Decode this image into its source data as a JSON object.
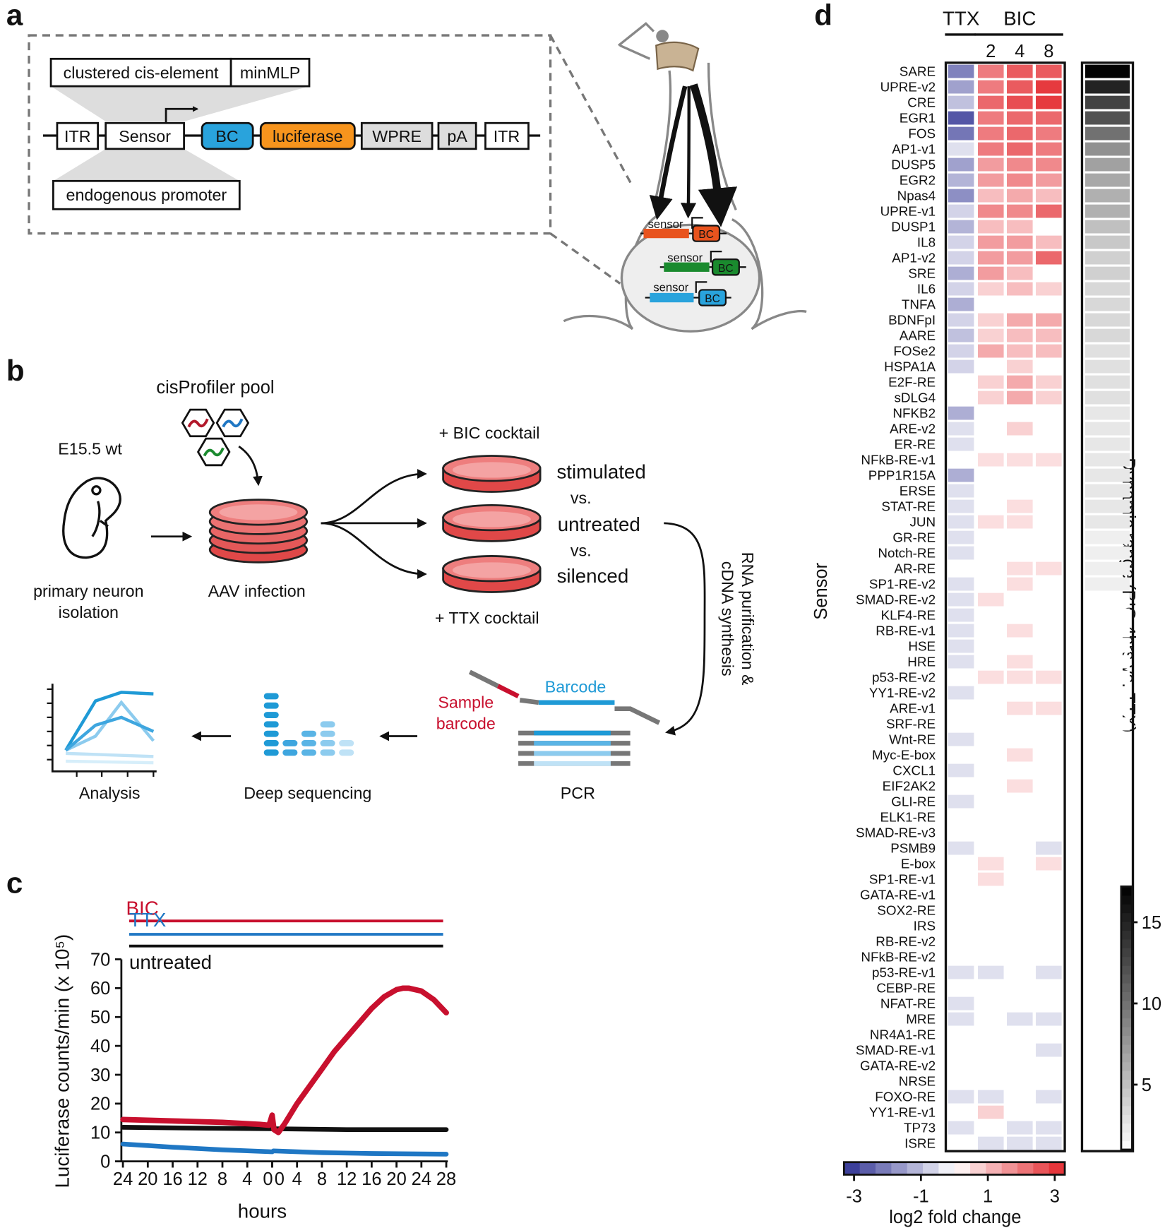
{
  "panel_labels": {
    "a": "a",
    "b": "b",
    "c": "c",
    "d": "d"
  },
  "panel_a": {
    "cis_element": "clustered cis-element",
    "min_promoter": "minMLP",
    "itr_left": "ITR",
    "sensor": "Sensor",
    "barcode": "BC",
    "reporter": "luciferase",
    "wpre": "WPRE",
    "polya": "pA",
    "itr_right": "ITR",
    "endogenous": "endogenous promoter",
    "cell_constructs": [
      {
        "sensor": "sensor",
        "barcode": "BC"
      },
      {
        "sensor": "sensor",
        "barcode": "BC"
      },
      {
        "sensor": "sensor",
        "barcode": "BC"
      }
    ]
  },
  "panel_b": {
    "pool": "cisProfiler pool",
    "mouse": "E15.5 wt",
    "isolation": [
      "primary neuron",
      "isolation"
    ],
    "infection": "AAV infection",
    "bic": "+ BIC cocktail",
    "stimulated": "stimulated",
    "vs_1": "vs.",
    "untreated": "untreated",
    "vs_2": "vs.",
    "silenced": "silenced",
    "ttx": "+ TTX cocktail",
    "rna": [
      "RNA purification &",
      "cDNA synthesis"
    ],
    "sample_barcode": [
      "Sample",
      "barcode"
    ],
    "barcode": "Barcode",
    "pcr": "PCR",
    "sequencing": "Deep sequencing",
    "analysis": "Analysis"
  },
  "chart_data": [
    {
      "type": "line",
      "x_label": "hours",
      "y_label": "Luciferase counts/min (x 10⁵)",
      "xlim": [
        -24,
        28
      ],
      "xticks": [
        {
          "value": -24,
          "label": "24"
        },
        {
          "value": -20,
          "label": "20"
        },
        {
          "value": -16,
          "label": "16"
        },
        {
          "value": -12,
          "label": "12"
        },
        {
          "value": -8,
          "label": "8"
        },
        {
          "value": -4,
          "label": "4"
        },
        0,
        0,
        4,
        8,
        12,
        16,
        20,
        24,
        28
      ],
      "ylim": [
        0,
        70
      ],
      "yticks": [
        0,
        10,
        20,
        30,
        40,
        50,
        60,
        70
      ],
      "series": [
        {
          "name": "BIC",
          "color": "#c8102e",
          "x": [
            -24,
            -16,
            -8,
            -2,
            -0.5,
            0,
            0.3,
            1,
            2,
            4,
            6,
            8,
            10,
            12,
            14,
            16,
            18,
            20,
            21,
            22,
            24,
            26,
            28
          ],
          "values": [
            14.5,
            14,
            13.5,
            12.8,
            12.5,
            16,
            11,
            10,
            13,
            20,
            26,
            32,
            38,
            43,
            48,
            53,
            57,
            59.5,
            60,
            60,
            59,
            56,
            51.5
          ]
        },
        {
          "name": "TTX",
          "color": "#1f77c4",
          "x": [
            -24,
            -16,
            -8,
            0,
            0.2,
            8,
            16,
            28
          ],
          "values": [
            6,
            4.9,
            4,
            3.3,
            3.6,
            3,
            2.7,
            2.5
          ]
        },
        {
          "name": "untreated",
          "color": "#111111",
          "x": [
            -24,
            -12,
            0,
            12,
            28
          ],
          "values": [
            11.8,
            11.5,
            11.3,
            11,
            11
          ]
        }
      ]
    },
    {
      "type": "heatmap",
      "y_label": "Sensor",
      "x_groups": [
        {
          "label": "TTX",
          "categories": [
            null
          ]
        },
        {
          "label": "BIC",
          "categories": [
            "2",
            "4",
            "8"
          ]
        }
      ],
      "rows": [
        "SARE",
        "UPRE-v2",
        "CRE",
        "EGR1",
        "FOS",
        "AP1-v1",
        "DUSP5",
        "EGR2",
        "Npas4",
        "UPRE-v1",
        "DUSP1",
        "IL8",
        "AP1-v2",
        "SRE",
        "IL6",
        "TNFA",
        "BDNFpI",
        "AARE",
        "FOSe2",
        "HSPA1A",
        "E2F-RE",
        "sDLG4",
        "NFKB2",
        "ARE-v2",
        "ER-RE",
        "NFkB-RE-v1",
        "PPP1R15A",
        "ERSE",
        "STAT-RE",
        "JUN",
        "GR-RE",
        "Notch-RE",
        "AR-RE",
        "SP1-RE-v2",
        "SMAD-RE-v2",
        "KLF4-RE",
        "RB-RE-v1",
        "HSE",
        "HRE",
        "p53-RE-v2",
        "YY1-RE-v2",
        "ARE-v1",
        "SRF-RE",
        "Wnt-RE",
        "Myc-E-box",
        "CXCL1",
        "EIF2AK2",
        "GLI-RE",
        "ELK1-RE",
        "SMAD-RE-v3",
        "PSMB9",
        "E-box",
        "SP1-RE-v1",
        "GATA-RE-v1",
        "SOX2-RE",
        "IRS",
        "RB-RE-v2",
        "NFkB-RE-v2",
        "p53-RE-v1",
        "CEBP-RE",
        "NFAT-RE",
        "MRE",
        "NR4A1-RE",
        "SMAD-RE-v1",
        "GATA-RE-v2",
        "NRSE",
        "FOXO-RE",
        "YY1-RE-v1",
        "TP73",
        "ISRE"
      ],
      "values": [
        [
          -2,
          2,
          2.5,
          2.5
        ],
        [
          -1.5,
          2,
          2.5,
          3
        ],
        [
          -1,
          2.3,
          2.7,
          3
        ],
        [
          -2.7,
          2,
          2.3,
          2.3
        ],
        [
          -2.2,
          2,
          2.3,
          2
        ],
        [
          -0.5,
          2,
          2.3,
          2
        ],
        [
          -1.5,
          1.5,
          1.8,
          1.8
        ],
        [
          -1.2,
          1.5,
          1.8,
          1.5
        ],
        [
          -1.8,
          1,
          1.3,
          1
        ],
        [
          -0.7,
          1.8,
          1.8,
          2.3
        ],
        [
          -1.2,
          1,
          1,
          0
        ],
        [
          -0.7,
          1.5,
          1.5,
          1
        ],
        [
          -0.7,
          1.5,
          1.5,
          2.3
        ],
        [
          -1.3,
          1.5,
          1,
          0
        ],
        [
          -0.7,
          0.7,
          1,
          0.7
        ],
        [
          -1.3,
          0,
          0,
          0
        ],
        [
          -0.7,
          0.7,
          1.3,
          1.3
        ],
        [
          -1,
          0.7,
          1,
          1
        ],
        [
          -0.7,
          1.3,
          1,
          1
        ],
        [
          -0.7,
          0,
          0.7,
          0
        ],
        [
          0,
          0.7,
          1.3,
          0.7
        ],
        [
          0,
          0.7,
          1.3,
          0.7
        ],
        [
          -1.3,
          0,
          0,
          0
        ],
        [
          -0.5,
          0,
          0.7,
          0
        ],
        [
          -0.5,
          0,
          0,
          0
        ],
        [
          0,
          0.5,
          0.5,
          0.5
        ],
        [
          -1.3,
          0,
          0,
          0
        ],
        [
          -0.5,
          0,
          0,
          0
        ],
        [
          -0.5,
          0,
          0.5,
          0
        ],
        [
          -0.5,
          0.5,
          0.5,
          0
        ],
        [
          -0.5,
          0,
          0,
          0
        ],
        [
          -0.5,
          0,
          0,
          0
        ],
        [
          0,
          0,
          0.5,
          0.5
        ],
        [
          -0.5,
          0,
          0.5,
          0
        ],
        [
          -0.5,
          0.5,
          0,
          0
        ],
        [
          -0.5,
          0,
          0,
          0
        ],
        [
          -0.5,
          0,
          0.5,
          0
        ],
        [
          -0.5,
          0,
          0,
          0
        ],
        [
          -0.5,
          0,
          0.5,
          0
        ],
        [
          0,
          0.5,
          0.5,
          0.5
        ],
        [
          -0.5,
          0,
          0,
          0
        ],
        [
          0,
          0,
          0.5,
          0.5
        ],
        [
          0,
          0,
          0,
          0
        ],
        [
          -0.5,
          0,
          0,
          0
        ],
        [
          0,
          0,
          0.5,
          0
        ],
        [
          -0.5,
          0,
          0,
          0
        ],
        [
          0,
          0,
          0.5,
          0
        ],
        [
          -0.5,
          0,
          0,
          0
        ],
        [
          0,
          0,
          0,
          0
        ],
        [
          0,
          0,
          0,
          0
        ],
        [
          -0.5,
          0,
          0,
          -0.5
        ],
        [
          0,
          0.5,
          0,
          0.5
        ],
        [
          0,
          0.5,
          0,
          0
        ],
        [
          0,
          0,
          0,
          0
        ],
        [
          0,
          0,
          0,
          0
        ],
        [
          0,
          0,
          0,
          0
        ],
        [
          0,
          0,
          0,
          0
        ],
        [
          0,
          0,
          0,
          0
        ],
        [
          -0.5,
          -0.5,
          0,
          -0.5
        ],
        [
          0,
          0,
          0,
          0
        ],
        [
          -0.5,
          0,
          0,
          0
        ],
        [
          -0.5,
          0,
          -0.5,
          -0.5
        ],
        [
          0,
          0,
          0,
          0
        ],
        [
          0,
          0,
          0,
          -0.5
        ],
        [
          0,
          0,
          0,
          0
        ],
        [
          0,
          0,
          0,
          0
        ],
        [
          -0.5,
          -0.5,
          0,
          -0.5
        ],
        [
          0,
          0.7,
          0,
          0
        ],
        [
          -0.5,
          0,
          -0.5,
          -0.5
        ],
        [
          0,
          -0.5,
          -0.5,
          -0.5
        ]
      ],
      "colorbar": {
        "label": "log2 fold change",
        "lim": [
          -3.3,
          3.3
        ],
        "ticks": [
          -3,
          -1,
          1,
          3
        ],
        "low_color": "#2e3192",
        "mid_color": "#ffffff",
        "high_color": "#e3262c"
      },
      "dynamic_range": {
        "label": "Dynamic range (BIC 4hrs vs. TTX)",
        "lim": [
          1,
          17.2
        ],
        "ticks": [
          5,
          10,
          15
        ],
        "low_color": "#ffffff",
        "high_color": "#000000",
        "values": [
          17,
          15,
          13,
          12,
          10,
          8,
          7,
          6.5,
          6,
          6,
          5,
          4.5,
          4,
          4,
          3.5,
          3.5,
          3.5,
          3.5,
          3,
          3,
          3,
          3,
          2.5,
          2.5,
          2.5,
          2.5,
          2.5,
          2.5,
          2.5,
          2.5,
          2,
          2,
          2,
          2,
          1,
          1,
          1,
          1,
          1,
          1,
          1,
          1,
          1,
          1,
          1,
          1,
          1,
          1,
          1,
          1,
          1,
          1,
          1,
          1,
          1,
          1,
          1,
          1,
          1,
          1,
          1,
          1,
          1,
          1,
          1,
          1,
          1,
          1,
          1,
          1
        ]
      }
    }
  ]
}
